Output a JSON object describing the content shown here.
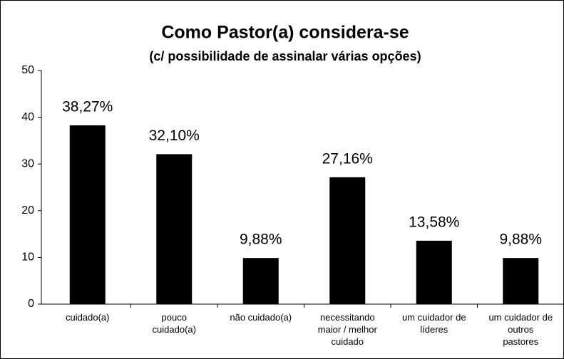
{
  "chart_data": {
    "type": "bar",
    "title": "Como Pastor(a) considera-se",
    "subtitle": "(c/ possibilidade de assinalar várias opções)",
    "categories": [
      "cuidado(a)",
      "pouco cuidado(a)",
      "não cuidado(a)",
      "necessitando maior / melhor cuidado",
      "um cuidador de líderes",
      "um cuidador de outros pastores"
    ],
    "values": [
      38.27,
      32.1,
      9.88,
      27.16,
      13.58,
      9.88
    ],
    "value_labels": [
      "38,27%",
      "32,10%",
      "9,88%",
      "27,16%",
      "13,58%",
      "9,88%"
    ],
    "color": "#000000",
    "ylim": [
      0,
      50
    ],
    "yticks": [
      0,
      10,
      20,
      30,
      40,
      50
    ],
    "grid": false
  }
}
